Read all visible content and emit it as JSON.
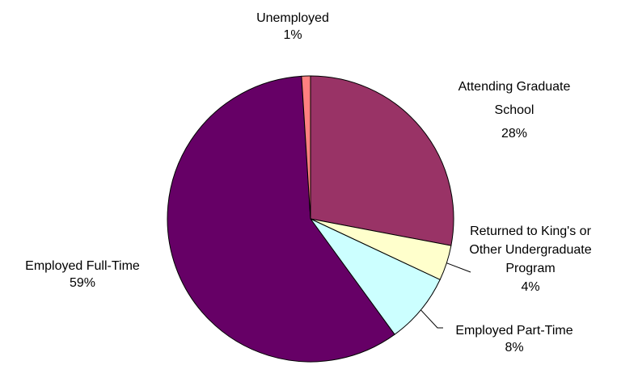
{
  "chart_data": {
    "type": "pie",
    "title": "",
    "slices": [
      {
        "name": "Attending Graduate School",
        "label_lines": [
          "Attending Graduate",
          "School"
        ],
        "value": 28,
        "value_label": "28%",
        "color": "#993366"
      },
      {
        "name": "Returned to King's or Other Undergraduate Program",
        "label_lines": [
          "Returned to King's or",
          "Other Undergraduate",
          "Program"
        ],
        "value": 4,
        "value_label": "4%",
        "color": "#ffffcc"
      },
      {
        "name": "Employed Part-Time",
        "label_lines": [
          "Employed Part-Time"
        ],
        "value": 8,
        "value_label": "8%",
        "color": "#ccffff"
      },
      {
        "name": "Employed Full-Time",
        "label_lines": [
          "Employed Full-Time"
        ],
        "value": 59,
        "value_label": "59%",
        "color": "#660066"
      },
      {
        "name": "Unemployed",
        "label_lines": [
          "Unemployed"
        ],
        "value": 1,
        "value_label": "1%",
        "color": "#ff8080"
      }
    ],
    "legend": "none"
  }
}
